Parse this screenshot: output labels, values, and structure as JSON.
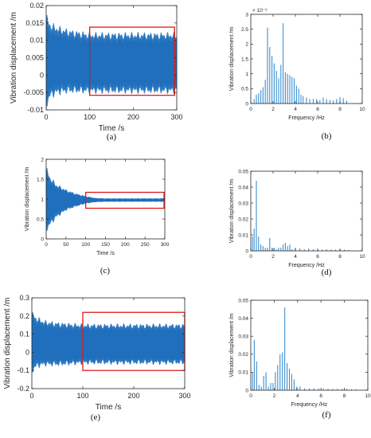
{
  "chart_data": [
    {
      "id": "a",
      "type": "line",
      "caption": "(a)",
      "xlabel": "Time /s",
      "ylabel": "Vibration displacement /m",
      "xlim": [
        0,
        300
      ],
      "ylim": [
        -0.01,
        0.02
      ],
      "xticks": [
        0,
        100,
        200,
        300
      ],
      "yticks": [
        -0.01,
        -0.005,
        0,
        0.005,
        0.01,
        0.015,
        0.02
      ],
      "ytick_labels": [
        "-0.01",
        "-0.005",
        "0",
        "0.005",
        "0.01",
        "0.015",
        "0.02"
      ],
      "series": [
        {
          "envelope": {
            "t": [
              0,
              10,
              25,
              50,
              75,
              100,
              300
            ],
            "upper": [
              0.018,
              0.0155,
              0.0145,
              0.0135,
              0.013,
              0.0125,
              0.0125
            ],
            "lower": [
              -0.01,
              -0.007,
              -0.006,
              -0.0055,
              -0.0055,
              -0.0055,
              -0.0055
            ]
          }
        }
      ],
      "highlight_box": {
        "x": [
          100,
          295
        ],
        "y": [
          -0.0058,
          0.0138
        ]
      }
    },
    {
      "id": "b",
      "type": "bar",
      "caption": "(b)",
      "xlabel": "Frequency /Hz",
      "ylabel": "Vibration displacement /m",
      "exponent_label": "× 10⁻³",
      "xlim": [
        0,
        10
      ],
      "ylim": [
        0,
        3
      ],
      "xticks": [
        0,
        2,
        4,
        6,
        8,
        10
      ],
      "yticks": [
        0,
        0.5,
        1,
        1.5,
        2,
        2.5,
        3
      ],
      "ytick_labels": [
        "0",
        "0.5",
        "1",
        "1.5",
        "2",
        "2.5",
        "3"
      ],
      "bars": {
        "x": [
          0.3,
          0.5,
          0.7,
          0.9,
          1.1,
          1.3,
          1.5,
          1.7,
          1.9,
          2.1,
          2.3,
          2.5,
          2.7,
          2.9,
          3.1,
          3.3,
          3.5,
          3.7,
          3.9,
          4.1,
          4.3,
          4.5,
          4.7,
          5.0,
          5.3,
          5.6,
          5.9,
          6.2,
          6.5,
          6.8,
          7.1,
          7.4,
          7.7,
          8.0,
          8.3,
          8.6
        ],
        "y": [
          0.15,
          0.3,
          0.35,
          0.45,
          0.55,
          0.8,
          2.55,
          1.9,
          1.6,
          1.35,
          1.1,
          0.85,
          1.3,
          2.7,
          1.05,
          1.0,
          0.95,
          0.9,
          0.85,
          0.6,
          0.5,
          0.3,
          0.25,
          0.2,
          0.15,
          0.15,
          0.15,
          0.12,
          0.2,
          0.15,
          0.12,
          0.1,
          0.15,
          0.22,
          0.18,
          0.1
        ]
      }
    },
    {
      "id": "c",
      "type": "line",
      "caption": "(c)",
      "xlabel": "Time /s",
      "ylabel": "Vibration displacement /m",
      "xlim": [
        0,
        300
      ],
      "ylim": [
        0,
        2
      ],
      "xticks": [
        0,
        50,
        100,
        150,
        200,
        250,
        300
      ],
      "yticks": [
        0,
        0.5,
        1,
        1.5,
        2
      ],
      "ytick_labels": [
        "0",
        "0.5",
        "1",
        "1.5",
        "2"
      ],
      "series": [
        {
          "envelope": {
            "t": [
              0,
              10,
              25,
              50,
              75,
              100,
              125,
              150,
              300
            ],
            "upper": [
              1.85,
              1.6,
              1.4,
              1.25,
              1.15,
              1.08,
              1.03,
              1.02,
              1.02
            ],
            "lower": [
              0.15,
              0.3,
              0.5,
              0.7,
              0.8,
              0.88,
              0.92,
              0.93,
              0.93
            ]
          }
        }
      ],
      "highlight_box": {
        "x": [
          100,
          298
        ],
        "y": [
          0.77,
          1.17
        ]
      }
    },
    {
      "id": "d",
      "type": "bar",
      "caption": "(d)",
      "xlabel": "Frequency /Hz",
      "ylabel": "Vibration displacement /m",
      "xlim": [
        0,
        10
      ],
      "ylim": [
        0,
        0.05
      ],
      "xticks": [
        0,
        2,
        4,
        6,
        8,
        10
      ],
      "yticks": [
        0,
        0.01,
        0.02,
        0.03,
        0.04,
        0.05
      ],
      "ytick_labels": [
        "0",
        "0.01",
        "0.02",
        "0.03",
        "0.04",
        "0.05"
      ],
      "bars": {
        "x": [
          0.15,
          0.3,
          0.5,
          0.7,
          0.9,
          1.1,
          1.3,
          1.5,
          1.7,
          1.9,
          2.1,
          2.3,
          2.5,
          2.7,
          2.9,
          3.1,
          3.3,
          3.5,
          3.7,
          4.0,
          4.4,
          4.8,
          5.2,
          5.6,
          6.0,
          6.4,
          6.8,
          7.2,
          7.6,
          8.0,
          8.4,
          8.8
        ],
        "y": [
          0.009,
          0.014,
          0.044,
          0.009,
          0.004,
          0.003,
          0.002,
          0.002,
          0.008,
          0.002,
          0.002,
          0.001,
          0.002,
          0.002,
          0.004,
          0.005,
          0.003,
          0.004,
          0.001,
          0.002,
          0.0015,
          0.001,
          0.0015,
          0.001,
          0.001,
          0.0008,
          0.001,
          0.0008,
          0.0008,
          0.001,
          0.0008,
          0.0005
        ]
      }
    },
    {
      "id": "e",
      "type": "line",
      "caption": "(e)",
      "xlabel": "Time /s",
      "ylabel": "Vibration displacement /m",
      "xlim": [
        0,
        300
      ],
      "ylim": [
        -0.2,
        0.3
      ],
      "xticks": [
        0,
        100,
        200,
        300
      ],
      "yticks": [
        -0.2,
        -0.1,
        0,
        0.1,
        0.2,
        0.3
      ],
      "ytick_labels": [
        "-0.2",
        "-0.1",
        "0",
        "0.1",
        "0.2",
        "0.3"
      ],
      "series": [
        {
          "envelope": {
            "t": [
              0,
              10,
              25,
              50,
              75,
              100,
              300
            ],
            "upper": [
              0.23,
              0.2,
              0.18,
              0.17,
              0.165,
              0.16,
              0.16
            ],
            "lower": [
              -0.12,
              -0.09,
              -0.08,
              -0.08,
              -0.075,
              -0.07,
              -0.07
            ]
          }
        }
      ],
      "highlight_box": {
        "x": [
          100,
          300
        ],
        "y": [
          -0.1,
          0.22
        ]
      }
    },
    {
      "id": "f",
      "type": "bar",
      "caption": "(f)",
      "xlabel": "Frequency /Hz",
      "ylabel": "Vibration displacement /m",
      "xlim": [
        0,
        10
      ],
      "ylim": [
        0,
        0.05
      ],
      "xticks": [
        0,
        2,
        4,
        6,
        8,
        10
      ],
      "yticks": [
        0,
        0.01,
        0.02,
        0.03,
        0.04,
        0.05
      ],
      "ytick_labels": [
        "0",
        "0.01",
        "0.02",
        "0.03",
        "0.04",
        "0.05"
      ],
      "bars": {
        "x": [
          0.15,
          0.3,
          0.5,
          0.7,
          0.9,
          1.1,
          1.3,
          1.5,
          1.7,
          1.9,
          2.1,
          2.3,
          2.5,
          2.7,
          2.9,
          3.1,
          3.3,
          3.5,
          3.7,
          3.9,
          4.2,
          4.6,
          5.0,
          5.4,
          5.8,
          6.2,
          6.6,
          7.0,
          7.4,
          7.8,
          8.2,
          8.6,
          9.0
        ],
        "y": [
          0.01,
          0.028,
          0.016,
          0.003,
          0.002,
          0.008,
          0.01,
          0.002,
          0.004,
          0.004,
          0.01,
          0.014,
          0.02,
          0.021,
          0.046,
          0.015,
          0.012,
          0.009,
          0.006,
          0.002,
          0.002,
          0.001,
          0.001,
          0.001,
          0.001,
          0.0008,
          0.0008,
          0.0008,
          0.0008,
          0.0008,
          0.0008,
          0.0005,
          0.0005
        ]
      }
    }
  ]
}
